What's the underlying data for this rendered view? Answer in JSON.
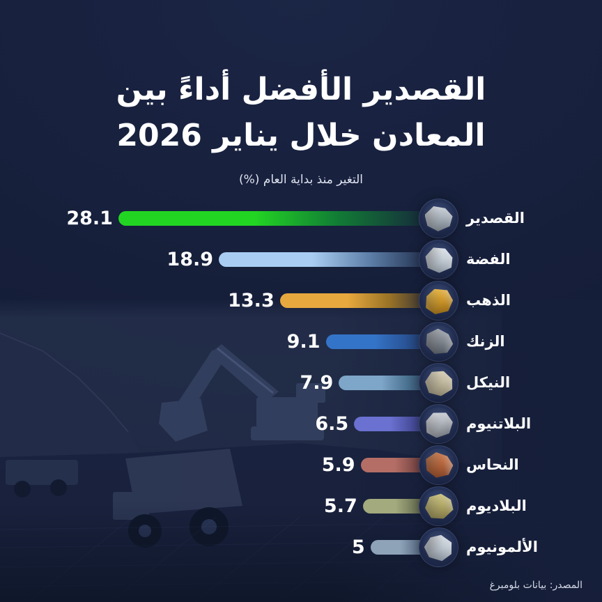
{
  "title": {
    "line1": "القصدير الأفضل أداءً بين",
    "line2": "المعادن خلال يناير 2026"
  },
  "subtitle": "التغير منذ بداية العام (%)",
  "source": "المصدر: بيانات بلومبرغ",
  "colors": {
    "background": "#161f3a",
    "title_text": "#ffffff",
    "subtitle_text": "#dfe4f0",
    "value_text": "#ffffff",
    "source_text": "#d5dbe8",
    "accent_green": "#23d523",
    "icon_circle_fill": "#232f52"
  },
  "chart_data": {
    "type": "bar",
    "orientation": "horizontal",
    "direction": "rtl",
    "title": "القصدير الأفضل أداءً بين المعادن خلال يناير 2026",
    "subtitle": "التغير منذ بداية العام (%)",
    "unit": "%",
    "xlim": [
      0,
      30
    ],
    "grid": false,
    "legend": "none",
    "categories": [
      "القصدير",
      "الفضة",
      "الذهب",
      "الزنك",
      "النيكل",
      "البلاتنيوم",
      "النحاس",
      "البلاديوم",
      "الألمونيوم"
    ],
    "values": [
      28.1,
      18.9,
      13.3,
      9.1,
      7.9,
      6.5,
      5.9,
      5.7,
      5
    ],
    "rows": [
      {
        "label": "القصدير",
        "value": 28.1,
        "value_label": "28.1",
        "icon": "tin-ore-icon",
        "bar_light": "#23d523",
        "bar_mid": "#117c35",
        "nugget_colors": [
          "#eef1f5",
          "#a9b2bc",
          "#5f6975"
        ]
      },
      {
        "label": "الفضة",
        "value": 18.9,
        "value_label": "18.9",
        "icon": "silver-ore-icon",
        "bar_light": "#a9cdf2",
        "bar_mid": "#5d7fa8",
        "nugget_colors": [
          "#f4f7fa",
          "#c3ccd5",
          "#7c8793"
        ]
      },
      {
        "label": "الذهب",
        "value": 13.3,
        "value_label": "13.3",
        "icon": "gold-nugget-icon",
        "bar_light": "#e7a83e",
        "bar_mid": "#9a7326",
        "nugget_colors": [
          "#f6d06a",
          "#d29a2a",
          "#8a5e10"
        ]
      },
      {
        "label": "الزنك",
        "value": 9.1,
        "value_label": "9.1",
        "icon": "zinc-ore-icon",
        "bar_light": "#3474c8",
        "bar_mid": "#2a569a",
        "nugget_colors": [
          "#c9ced4",
          "#7d838c",
          "#3e444c"
        ]
      },
      {
        "label": "النيكل",
        "value": 7.9,
        "value_label": "7.9",
        "icon": "nickel-ore-icon",
        "bar_light": "#7ea6c8",
        "bar_mid": "#49708f",
        "nugget_colors": [
          "#e9e2cf",
          "#c0b79c",
          "#847c63"
        ]
      },
      {
        "label": "البلاتنيوم",
        "value": 6.5,
        "value_label": "6.5",
        "icon": "platinum-ore-icon",
        "bar_light": "#6a71d0",
        "bar_mid": "#474c9a",
        "nugget_colors": [
          "#eaecf0",
          "#b2b7bf",
          "#63686f"
        ]
      },
      {
        "label": "النحاس",
        "value": 5.9,
        "value_label": "5.9",
        "icon": "copper-ore-icon",
        "bar_light": "#b56e66",
        "bar_mid": "#7e4a48",
        "nugget_colors": [
          "#e09a6e",
          "#b4633a",
          "#6e3a22"
        ]
      },
      {
        "label": "البلاديوم",
        "value": 5.7,
        "value_label": "5.7",
        "icon": "palladium-ore-icon",
        "bar_light": "#a3aa7d",
        "bar_mid": "#6f7657",
        "nugget_colors": [
          "#ded898",
          "#b3a968",
          "#776f3e"
        ]
      },
      {
        "label": "الألمونيوم",
        "value": 5,
        "value_label": "5",
        "icon": "aluminum-ore-icon",
        "bar_light": "#8ea2b8",
        "bar_mid": "#5d7189",
        "nugget_colors": [
          "#f0f3f6",
          "#bcc5cf",
          "#707a86"
        ]
      }
    ]
  }
}
